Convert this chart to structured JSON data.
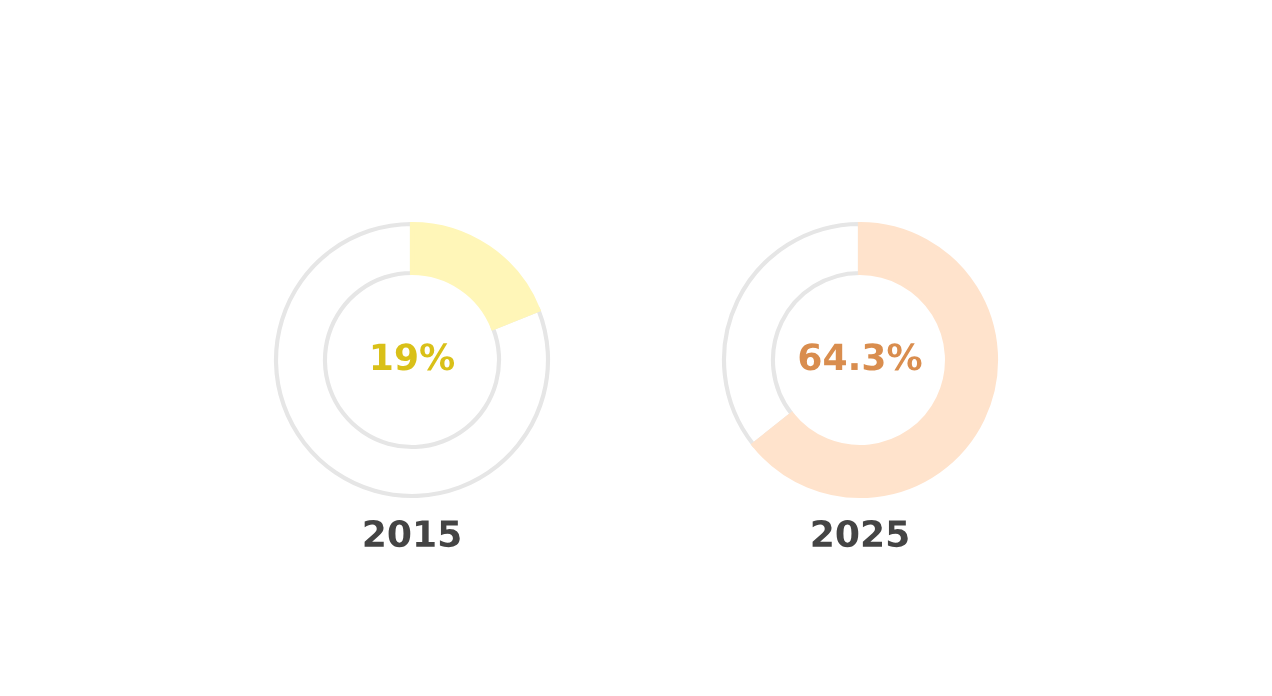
{
  "chart_data": [
    {
      "type": "donut",
      "title": "2015",
      "categories": [
        null,
        null
      ],
      "values": [
        19,
        81
      ],
      "colors": [
        "#fff6b8",
        "#ffffff"
      ],
      "value_labels": [
        "19%",
        null
      ]
    },
    {
      "type": "donut",
      "title": "2025",
      "categories": [
        null,
        null
      ],
      "values": [
        64.3,
        35.7
      ],
      "colors": [
        "#ffe3cc",
        "#ffffff"
      ],
      "value_labels": [
        "64.3%",
        null
      ]
    }
  ]
}
